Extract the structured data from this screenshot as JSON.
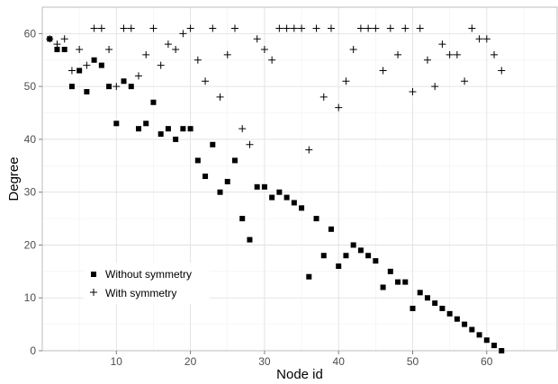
{
  "chart_data": {
    "type": "scatter",
    "title": "",
    "xlabel": "Node id",
    "ylabel": "Degree",
    "xlim": [
      0,
      69.5
    ],
    "ylim": [
      0,
      65
    ],
    "x_ticks": [
      10,
      20,
      30,
      40,
      50,
      60
    ],
    "y_ticks": [
      0,
      10,
      20,
      30,
      40,
      50,
      60
    ],
    "grid": true,
    "legend_position": "bottom-left",
    "series": [
      {
        "name": "Without symmetry",
        "marker": "square",
        "color": "#000000",
        "points": [
          [
            1,
            59
          ],
          [
            2,
            57
          ],
          [
            3,
            57
          ],
          [
            4,
            50
          ],
          [
            5,
            53
          ],
          [
            6,
            49
          ],
          [
            7,
            55
          ],
          [
            8,
            54
          ],
          [
            9,
            50
          ],
          [
            10,
            43
          ],
          [
            11,
            51
          ],
          [
            12,
            50
          ],
          [
            13,
            42
          ],
          [
            14,
            43
          ],
          [
            15,
            47
          ],
          [
            16,
            41
          ],
          [
            17,
            42
          ],
          [
            18,
            40
          ],
          [
            19,
            42
          ],
          [
            20,
            42
          ],
          [
            21,
            36
          ],
          [
            22,
            33
          ],
          [
            23,
            39
          ],
          [
            24,
            30
          ],
          [
            25,
            32
          ],
          [
            26,
            36
          ],
          [
            27,
            25
          ],
          [
            28,
            21
          ],
          [
            29,
            31
          ],
          [
            30,
            31
          ],
          [
            31,
            29
          ],
          [
            32,
            30
          ],
          [
            33,
            29
          ],
          [
            34,
            28
          ],
          [
            35,
            27
          ],
          [
            36,
            14
          ],
          [
            37,
            25
          ],
          [
            38,
            18
          ],
          [
            39,
            23
          ],
          [
            40,
            16
          ],
          [
            41,
            18
          ],
          [
            42,
            20
          ],
          [
            43,
            19
          ],
          [
            44,
            18
          ],
          [
            45,
            17
          ],
          [
            46,
            12
          ],
          [
            47,
            15
          ],
          [
            48,
            13
          ],
          [
            49,
            13
          ],
          [
            50,
            8
          ],
          [
            51,
            11
          ],
          [
            52,
            10
          ],
          [
            53,
            9
          ],
          [
            54,
            8
          ],
          [
            55,
            7
          ],
          [
            56,
            6
          ],
          [
            57,
            5
          ],
          [
            58,
            4
          ],
          [
            59,
            3
          ],
          [
            60,
            2
          ],
          [
            61,
            1
          ],
          [
            62,
            0
          ]
        ]
      },
      {
        "name": "With symmetry",
        "marker": "plus",
        "color": "#000000",
        "points": [
          [
            1,
            59
          ],
          [
            2,
            58
          ],
          [
            3,
            59
          ],
          [
            4,
            53
          ],
          [
            5,
            57
          ],
          [
            6,
            54
          ],
          [
            7,
            61
          ],
          [
            8,
            61
          ],
          [
            9,
            57
          ],
          [
            10,
            50
          ],
          [
            11,
            61
          ],
          [
            12,
            61
          ],
          [
            13,
            52
          ],
          [
            14,
            56
          ],
          [
            15,
            61
          ],
          [
            16,
            54
          ],
          [
            17,
            58
          ],
          [
            18,
            57
          ],
          [
            19,
            60
          ],
          [
            20,
            61
          ],
          [
            21,
            55
          ],
          [
            22,
            51
          ],
          [
            23,
            61
          ],
          [
            24,
            48
          ],
          [
            25,
            56
          ],
          [
            26,
            61
          ],
          [
            27,
            42
          ],
          [
            28,
            39
          ],
          [
            29,
            59
          ],
          [
            30,
            57
          ],
          [
            31,
            55
          ],
          [
            32,
            61
          ],
          [
            33,
            61
          ],
          [
            34,
            61
          ],
          [
            35,
            61
          ],
          [
            36,
            38
          ],
          [
            37,
            61
          ],
          [
            38,
            48
          ],
          [
            39,
            61
          ],
          [
            40,
            46
          ],
          [
            41,
            51
          ],
          [
            42,
            57
          ],
          [
            43,
            61
          ],
          [
            44,
            61
          ],
          [
            45,
            61
          ],
          [
            46,
            53
          ],
          [
            47,
            61
          ],
          [
            48,
            56
          ],
          [
            49,
            61
          ],
          [
            50,
            49
          ],
          [
            51,
            61
          ],
          [
            52,
            55
          ],
          [
            53,
            50
          ],
          [
            54,
            58
          ],
          [
            55,
            56
          ],
          [
            56,
            56
          ],
          [
            57,
            51
          ],
          [
            58,
            61
          ],
          [
            59,
            59
          ],
          [
            60,
            59
          ],
          [
            61,
            56
          ],
          [
            62,
            53
          ]
        ]
      }
    ]
  }
}
